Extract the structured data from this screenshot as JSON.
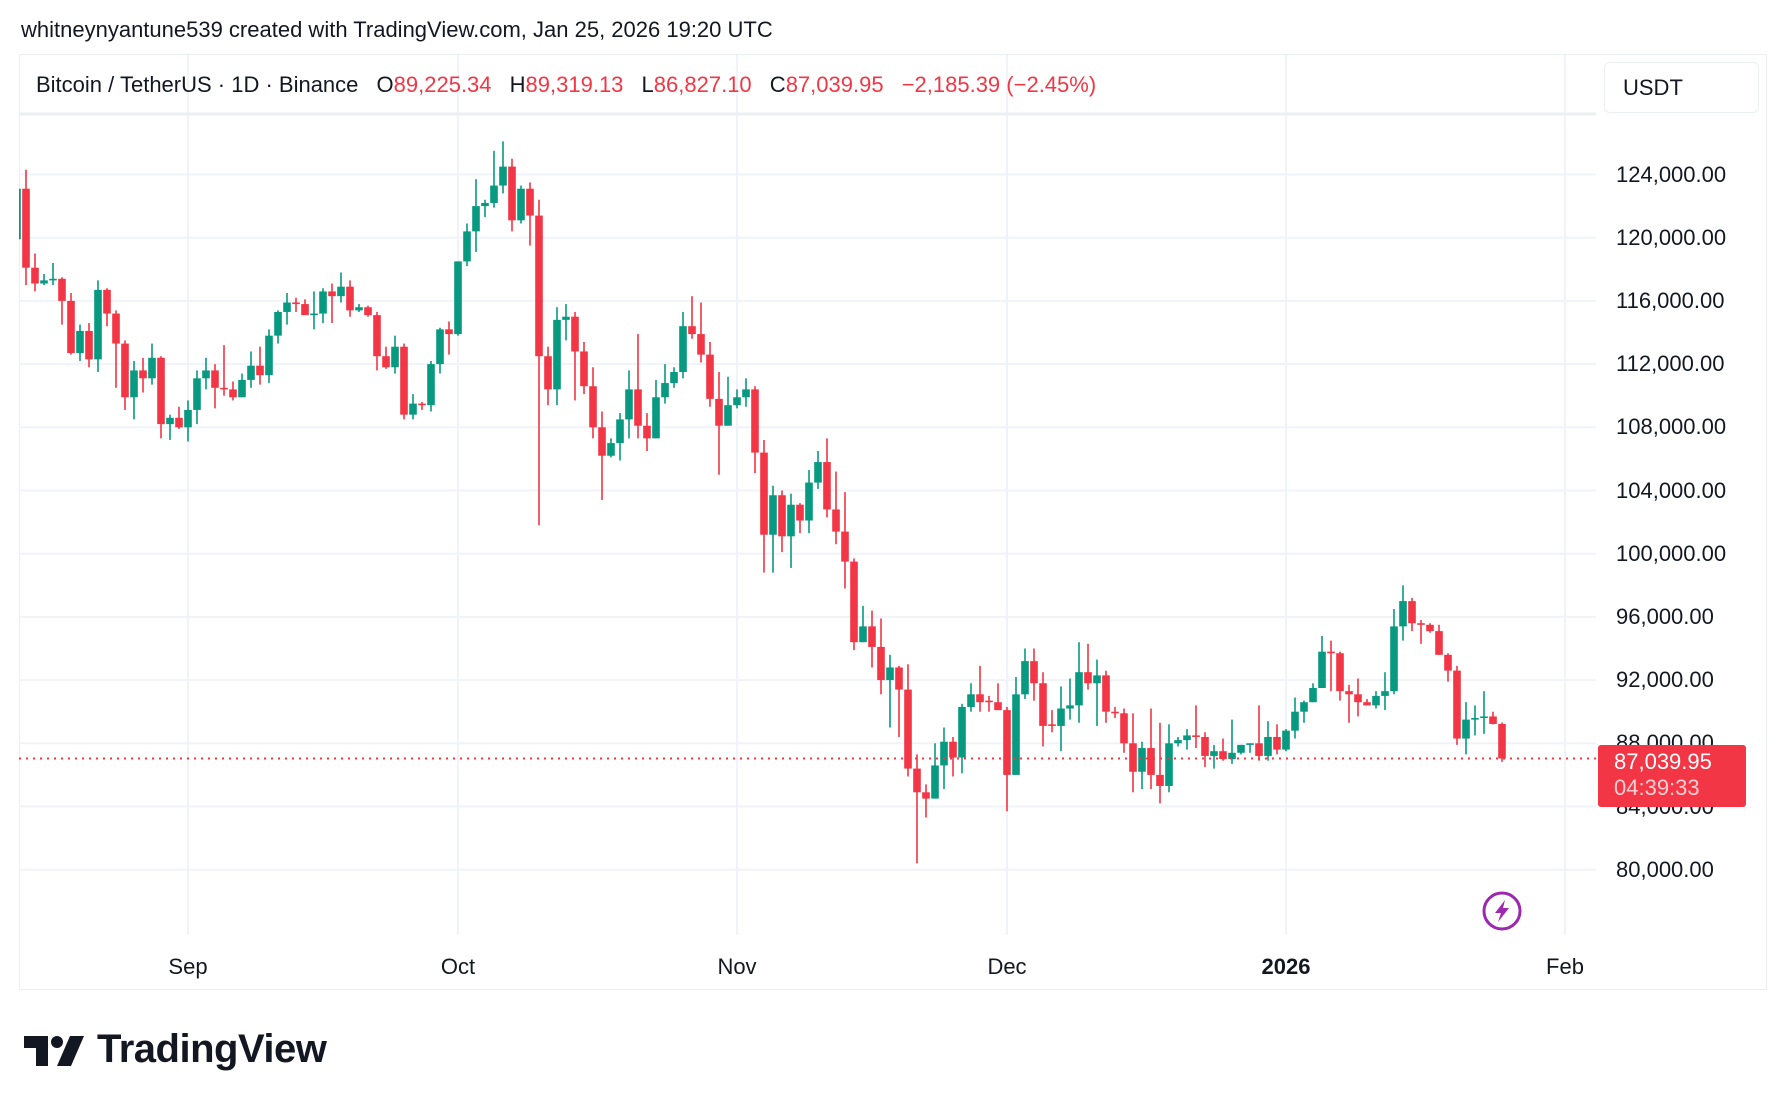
{
  "header": {
    "title": "whitneynyantune539 created with TradingView.com, Jan 25, 2026 19:20 UTC",
    "symbol": "Bitcoin / TetherUS · 1D · Binance",
    "open_label": "O",
    "open": "89,225.34",
    "high_label": "H",
    "high": "89,319.13",
    "low_label": "L",
    "low": "86,827.10",
    "close_label": "C",
    "close": "87,039.95",
    "change": "−2,185.39 (−2.45%)",
    "currency_button": "USDT"
  },
  "badge": {
    "price": "87,039.95",
    "countdown": "04:39:33"
  },
  "logo": {
    "text": "TradingView"
  },
  "icons": {
    "alert": "lightning-bolt-icon",
    "logo": "tradingview-logo-icon"
  },
  "colors": {
    "up": "#089981",
    "down": "#F23645",
    "alert": "#9C27B0",
    "grid": "#f0f3fa"
  },
  "chart_data": {
    "type": "candlestick",
    "title": "Bitcoin / TetherUS · 1D · Binance",
    "last_price": 87039.95,
    "ylim": [
      77000,
      128000
    ],
    "grid": true,
    "y_ticks": [
      {
        "value": 124000,
        "label": "124,000.00"
      },
      {
        "value": 120000,
        "label": "120,000.00"
      },
      {
        "value": 116000,
        "label": "116,000.00"
      },
      {
        "value": 112000,
        "label": "112,000.00"
      },
      {
        "value": 108000,
        "label": "108,000.00"
      },
      {
        "value": 104000,
        "label": "104,000.00"
      },
      {
        "value": 100000,
        "label": "100,000.00"
      },
      {
        "value": 96000,
        "label": "96,000.00"
      },
      {
        "value": 92000,
        "label": "92,000.00"
      },
      {
        "value": 88000,
        "label": "88,000.00"
      },
      {
        "value": 84000,
        "label": "84,000.00"
      },
      {
        "value": 80000,
        "label": "80,000.00"
      }
    ],
    "x_ticks": [
      {
        "date": "2025-09-01",
        "label": "Sep",
        "bold": false
      },
      {
        "date": "2025-10-01",
        "label": "Oct",
        "bold": false
      },
      {
        "date": "2025-11-01",
        "label": "Nov",
        "bold": false
      },
      {
        "date": "2025-12-01",
        "label": "Dec",
        "bold": false
      },
      {
        "date": "2026-01-01",
        "label": "2026",
        "bold": true
      },
      {
        "date": "2026-02-01",
        "label": "Feb",
        "bold": false
      }
    ],
    "columns": [
      "date",
      "open",
      "high",
      "low",
      "close"
    ],
    "candles": [
      [
        "2025-08-13",
        119900,
        123500,
        118800,
        123100
      ],
      [
        "2025-08-14",
        123100,
        124300,
        117000,
        118100
      ],
      [
        "2025-08-15",
        118100,
        119000,
        116600,
        117100
      ],
      [
        "2025-08-16",
        117100,
        117700,
        117000,
        117300
      ],
      [
        "2025-08-17",
        117300,
        118400,
        117000,
        117400
      ],
      [
        "2025-08-18",
        117400,
        117500,
        114500,
        116000
      ],
      [
        "2025-08-19",
        116000,
        116500,
        112600,
        112700
      ],
      [
        "2025-08-20",
        112700,
        114500,
        112200,
        114100
      ],
      [
        "2025-08-21",
        114100,
        114600,
        111800,
        112300
      ],
      [
        "2025-08-22",
        112300,
        117300,
        111500,
        116700
      ],
      [
        "2025-08-23",
        116700,
        116800,
        114400,
        115200
      ],
      [
        "2025-08-24",
        115200,
        115400,
        110500,
        113300
      ],
      [
        "2025-08-25",
        113300,
        113500,
        109100,
        109900
      ],
      [
        "2025-08-26",
        109900,
        112200,
        108500,
        111600
      ],
      [
        "2025-08-27",
        111600,
        112400,
        110200,
        111100
      ],
      [
        "2025-08-28",
        111100,
        113300,
        110700,
        112400
      ],
      [
        "2025-08-29",
        112400,
        112500,
        107300,
        108200
      ],
      [
        "2025-08-30",
        108200,
        108800,
        107200,
        108600
      ],
      [
        "2025-08-31",
        108600,
        109300,
        107900,
        108000
      ],
      [
        "2025-09-01",
        108000,
        109700,
        107100,
        109100
      ],
      [
        "2025-09-02",
        109100,
        111600,
        108200,
        111100
      ],
      [
        "2025-09-03",
        111100,
        112400,
        110400,
        111600
      ],
      [
        "2025-09-04",
        111600,
        112000,
        109200,
        110500
      ],
      [
        "2025-09-05",
        110500,
        113200,
        110000,
        110400
      ],
      [
        "2025-09-06",
        110400,
        110900,
        109700,
        109900
      ],
      [
        "2025-09-07",
        109900,
        111400,
        109900,
        111000
      ],
      [
        "2025-09-08",
        111000,
        112800,
        110500,
        111900
      ],
      [
        "2025-09-09",
        111900,
        113100,
        110700,
        111300
      ],
      [
        "2025-09-10",
        111300,
        114200,
        110800,
        113800
      ],
      [
        "2025-09-11",
        113800,
        115400,
        113300,
        115300
      ],
      [
        "2025-09-12",
        115300,
        116500,
        114500,
        115900
      ],
      [
        "2025-09-13",
        115900,
        116200,
        115300,
        115800
      ],
      [
        "2025-09-14",
        115800,
        116100,
        115300,
        115100
      ],
      [
        "2025-09-15",
        115100,
        116600,
        114200,
        115200
      ],
      [
        "2025-09-16",
        115200,
        116800,
        114600,
        116600
      ],
      [
        "2025-09-17",
        116600,
        117100,
        114600,
        116300
      ],
      [
        "2025-09-18",
        116300,
        117800,
        115900,
        116900
      ],
      [
        "2025-09-19",
        116900,
        117300,
        115000,
        115400
      ],
      [
        "2025-09-20",
        115400,
        115800,
        115300,
        115600
      ],
      [
        "2025-09-21",
        115600,
        115700,
        115000,
        115100
      ],
      [
        "2025-09-22",
        115100,
        115300,
        111600,
        112500
      ],
      [
        "2025-09-23",
        112500,
        113100,
        111700,
        111800
      ],
      [
        "2025-09-24",
        111800,
        113800,
        111400,
        113100
      ],
      [
        "2025-09-25",
        113100,
        113300,
        108500,
        108800
      ],
      [
        "2025-09-26",
        108800,
        110100,
        108500,
        109500
      ],
      [
        "2025-09-27",
        109500,
        109600,
        109100,
        109400
      ],
      [
        "2025-09-28",
        109400,
        112200,
        109000,
        112000
      ],
      [
        "2025-09-29",
        112000,
        114300,
        111400,
        114200
      ],
      [
        "2025-09-30",
        114200,
        114700,
        112600,
        113900
      ],
      [
        "2025-10-01",
        113900,
        118500,
        113800,
        118500
      ],
      [
        "2025-10-02",
        118500,
        120900,
        118200,
        120400
      ],
      [
        "2025-10-03",
        120400,
        123700,
        119100,
        122000
      ],
      [
        "2025-10-04",
        122000,
        122400,
        121300,
        122200
      ],
      [
        "2025-10-05",
        122200,
        125500,
        121900,
        123300
      ],
      [
        "2025-10-06",
        123300,
        126100,
        122800,
        124500
      ],
      [
        "2025-10-07",
        124500,
        125000,
        120400,
        121100
      ],
      [
        "2025-10-08",
        121100,
        123300,
        120900,
        123100
      ],
      [
        "2025-10-09",
        123100,
        123500,
        119500,
        121400
      ],
      [
        "2025-10-10",
        121400,
        122400,
        101800,
        112500
      ],
      [
        "2025-10-11",
        112500,
        113100,
        109400,
        110400
      ],
      [
        "2025-10-12",
        110400,
        115600,
        109400,
        114800
      ],
      [
        "2025-10-13",
        114800,
        115800,
        113500,
        115000
      ],
      [
        "2025-10-14",
        115000,
        115300,
        109700,
        112800
      ],
      [
        "2025-10-15",
        112800,
        113400,
        110100,
        110600
      ],
      [
        "2025-10-16",
        110600,
        111800,
        107300,
        108000
      ],
      [
        "2025-10-17",
        108000,
        109000,
        103400,
        106200
      ],
      [
        "2025-10-18",
        106200,
        107300,
        106100,
        107000
      ],
      [
        "2025-10-19",
        107000,
        108900,
        105900,
        108500
      ],
      [
        "2025-10-20",
        108500,
        111600,
        107300,
        110400
      ],
      [
        "2025-10-21",
        110400,
        113900,
        107300,
        108100
      ],
      [
        "2025-10-22",
        108100,
        108900,
        106500,
        107300
      ],
      [
        "2025-10-23",
        107300,
        111000,
        107300,
        109900
      ],
      [
        "2025-10-24",
        109900,
        112000,
        109500,
        110800
      ],
      [
        "2025-10-25",
        110800,
        111800,
        110500,
        111500
      ],
      [
        "2025-10-26",
        111500,
        115300,
        111100,
        114400
      ],
      [
        "2025-10-27",
        114400,
        116300,
        113600,
        113900
      ],
      [
        "2025-10-28",
        113900,
        115900,
        112100,
        112600
      ],
      [
        "2025-10-29",
        112600,
        113400,
        109300,
        109800
      ],
      [
        "2025-10-30",
        109800,
        111500,
        105000,
        108100
      ],
      [
        "2025-10-31",
        108100,
        111200,
        108100,
        109400
      ],
      [
        "2025-11-01",
        109400,
        110400,
        109200,
        109900
      ],
      [
        "2025-11-02",
        109900,
        111100,
        109300,
        110400
      ],
      [
        "2025-11-03",
        110400,
        110600,
        105100,
        106400
      ],
      [
        "2025-11-04",
        106400,
        107200,
        98800,
        101200
      ],
      [
        "2025-11-05",
        101200,
        104300,
        98800,
        103700
      ],
      [
        "2025-11-06",
        103700,
        104000,
        100100,
        101100
      ],
      [
        "2025-11-07",
        101100,
        103800,
        99100,
        103100
      ],
      [
        "2025-11-08",
        103100,
        103200,
        101300,
        102100
      ],
      [
        "2025-11-09",
        102100,
        105300,
        101300,
        104500
      ],
      [
        "2025-11-10",
        104500,
        106500,
        104100,
        105800
      ],
      [
        "2025-11-11",
        105800,
        107300,
        102300,
        102800
      ],
      [
        "2025-11-12",
        102800,
        105200,
        100600,
        101400
      ],
      [
        "2025-11-13",
        101400,
        103900,
        97800,
        99500
      ],
      [
        "2025-11-14",
        99500,
        99700,
        93900,
        94400
      ],
      [
        "2025-11-15",
        94400,
        96700,
        94400,
        95400
      ],
      [
        "2025-11-16",
        95400,
        96400,
        92800,
        94100
      ],
      [
        "2025-11-17",
        94100,
        95900,
        91100,
        92000
      ],
      [
        "2025-11-18",
        92000,
        93600,
        89000,
        92800
      ],
      [
        "2025-11-19",
        92800,
        92900,
        88400,
        91400
      ],
      [
        "2025-11-20",
        91400,
        93000,
        85900,
        86400
      ],
      [
        "2025-11-21",
        86400,
        87300,
        80400,
        84900
      ],
      [
        "2025-11-22",
        84900,
        85400,
        83300,
        84500
      ],
      [
        "2025-11-23",
        84500,
        88000,
        84500,
        86600
      ],
      [
        "2025-11-24",
        86600,
        89000,
        85100,
        88100
      ],
      [
        "2025-11-25",
        88100,
        88400,
        85900,
        87100
      ],
      [
        "2025-11-26",
        87100,
        90500,
        86100,
        90300
      ],
      [
        "2025-11-27",
        90300,
        91800,
        90000,
        91100
      ],
      [
        "2025-11-28",
        91100,
        92900,
        90000,
        90600
      ],
      [
        "2025-11-29",
        90700,
        91000,
        90000,
        90600
      ],
      [
        "2025-11-30",
        90600,
        91800,
        90100,
        90100
      ],
      [
        "2025-12-01",
        90100,
        90300,
        83700,
        86000
      ],
      [
        "2025-12-02",
        86000,
        92200,
        86000,
        91100
      ],
      [
        "2025-12-03",
        91100,
        94000,
        90800,
        93200
      ],
      [
        "2025-12-04",
        93200,
        94000,
        90700,
        91800
      ],
      [
        "2025-12-05",
        91800,
        92500,
        87800,
        89100
      ],
      [
        "2025-12-06",
        89200,
        90100,
        88700,
        89100
      ],
      [
        "2025-12-07",
        89100,
        91600,
        87500,
        90200
      ],
      [
        "2025-12-08",
        90200,
        92100,
        89500,
        90400
      ],
      [
        "2025-12-09",
        90400,
        94400,
        89300,
        92500
      ],
      [
        "2025-12-10",
        92500,
        94300,
        91400,
        91800
      ],
      [
        "2025-12-11",
        91800,
        93300,
        89100,
        92300
      ],
      [
        "2025-12-12",
        92300,
        92600,
        89300,
        90000
      ],
      [
        "2025-12-13",
        90000,
        90300,
        89600,
        89900
      ],
      [
        "2025-12-14",
        89900,
        90200,
        87400,
        88000
      ],
      [
        "2025-12-15",
        88000,
        89900,
        84900,
        86200
      ],
      [
        "2025-12-16",
        86200,
        88100,
        85100,
        87700
      ],
      [
        "2025-12-17",
        87700,
        90200,
        85100,
        86000
      ],
      [
        "2025-12-18",
        86000,
        89300,
        84200,
        85300
      ],
      [
        "2025-12-19",
        85300,
        89200,
        84900,
        88000
      ],
      [
        "2025-12-20",
        88000,
        88400,
        87800,
        88200
      ],
      [
        "2025-12-21",
        88200,
        88900,
        87600,
        88500
      ],
      [
        "2025-12-22",
        88500,
        90400,
        87700,
        88400
      ],
      [
        "2025-12-23",
        88400,
        88700,
        86500,
        87200
      ],
      [
        "2025-12-24",
        87200,
        87900,
        86400,
        87500
      ],
      [
        "2025-12-25",
        87500,
        88300,
        86900,
        87000
      ],
      [
        "2025-12-26",
        87000,
        89500,
        86700,
        87400
      ],
      [
        "2025-12-27",
        87400,
        87900,
        87300,
        87900
      ],
      [
        "2025-12-28",
        87900,
        88000,
        87400,
        88000
      ],
      [
        "2025-12-29",
        88000,
        90400,
        86900,
        87200
      ],
      [
        "2025-12-30",
        87200,
        89400,
        86900,
        88400
      ],
      [
        "2025-12-31",
        88400,
        89200,
        87300,
        87600
      ],
      [
        "2026-01-01",
        87600,
        88900,
        87500,
        88800
      ],
      [
        "2026-01-02",
        88800,
        90900,
        88300,
        90000
      ],
      [
        "2026-01-03",
        90000,
        90700,
        89300,
        90600
      ],
      [
        "2026-01-04",
        90600,
        91800,
        90600,
        91500
      ],
      [
        "2026-01-05",
        91500,
        94800,
        91500,
        93800
      ],
      [
        "2026-01-06",
        93800,
        94500,
        91300,
        93700
      ],
      [
        "2026-01-07",
        93700,
        93800,
        90700,
        91300
      ],
      [
        "2026-01-08",
        91300,
        91700,
        89300,
        91100
      ],
      [
        "2026-01-09",
        91100,
        92100,
        89700,
        90600
      ],
      [
        "2026-01-10",
        90600,
        90800,
        90400,
        90400
      ],
      [
        "2026-01-11",
        90400,
        91300,
        90200,
        91000
      ],
      [
        "2026-01-12",
        91000,
        92500,
        90100,
        91300
      ],
      [
        "2026-01-13",
        91300,
        96500,
        91100,
        95400
      ],
      [
        "2026-01-14",
        95400,
        98000,
        94500,
        97000
      ],
      [
        "2026-01-15",
        97000,
        97200,
        95100,
        95600
      ],
      [
        "2026-01-16",
        95600,
        95800,
        94300,
        95500
      ],
      [
        "2026-01-17",
        95500,
        95600,
        95000,
        95100
      ],
      [
        "2026-01-18",
        95100,
        95500,
        93600,
        93600
      ],
      [
        "2026-01-19",
        93600,
        93700,
        91900,
        92600
      ],
      [
        "2026-01-20",
        92600,
        92900,
        87900,
        88300
      ],
      [
        "2026-01-21",
        88300,
        90600,
        87300,
        89500
      ],
      [
        "2026-01-22",
        89500,
        90400,
        88500,
        89600
      ],
      [
        "2026-01-23",
        89600,
        91300,
        88600,
        89700
      ],
      [
        "2026-01-24",
        89700,
        90000,
        89200,
        89225.34
      ],
      [
        "2026-01-25",
        89225.34,
        89319.13,
        86827.1,
        87039.95
      ]
    ]
  }
}
